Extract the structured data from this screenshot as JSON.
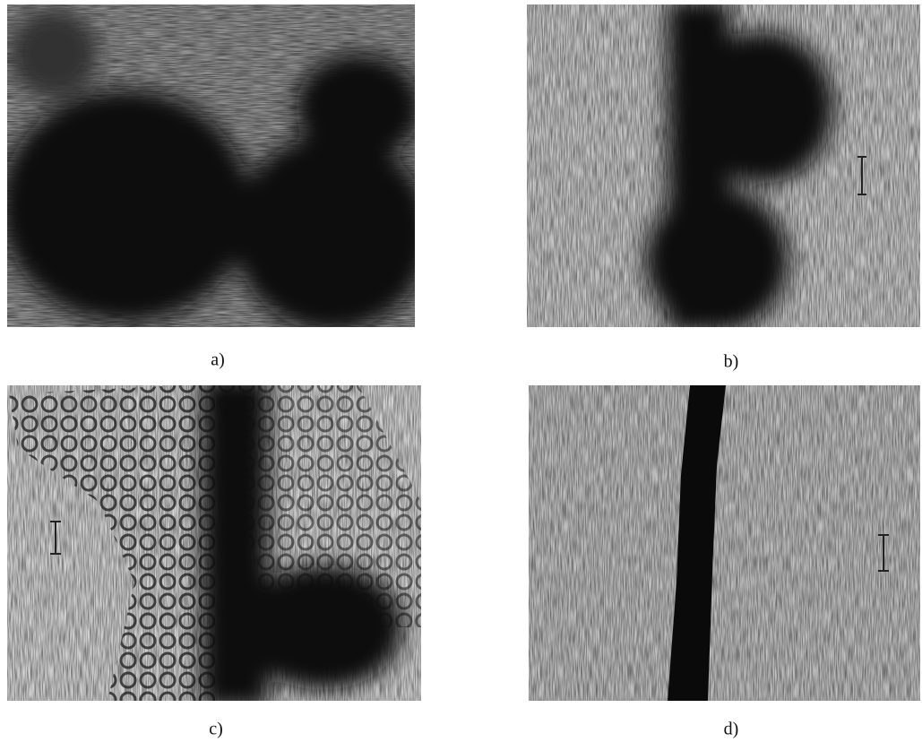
{
  "figure": {
    "panels": [
      {
        "label": "a)"
      },
      {
        "label": "b)"
      },
      {
        "label": "c)"
      },
      {
        "label": "d)"
      }
    ]
  }
}
